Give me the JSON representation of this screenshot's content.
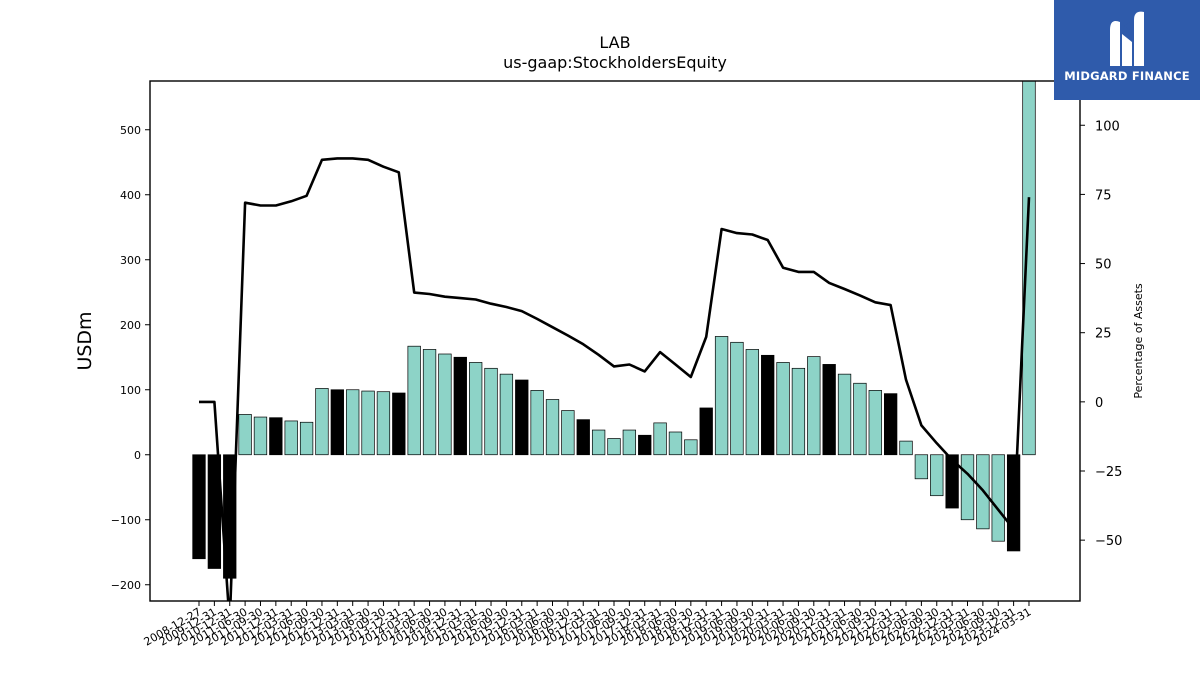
{
  "chart_data": {
    "type": "bar",
    "title": "LAB",
    "subtitle": "us-gaap:StockholdersEquity",
    "ylabel": "USDm",
    "y2label": "Percentage of Assets",
    "ylim": [
      -225,
      575
    ],
    "y2lim": [
      -72,
      116
    ],
    "yticks": [
      -200,
      -100,
      0,
      100,
      200,
      300,
      400,
      500
    ],
    "y2ticks": [
      -50,
      -25,
      0,
      25,
      50,
      75,
      100
    ],
    "categories": [
      "2008-12-27",
      "2009-12-31",
      "2010-12-31",
      "2011-06-30",
      "2011-09-30",
      "2011-12-31",
      "2012-03-31",
      "2012-06-30",
      "2012-09-30",
      "2012-12-31",
      "2013-03-31",
      "2013-06-30",
      "2013-09-30",
      "2013-12-31",
      "2014-03-31",
      "2014-06-30",
      "2014-09-30",
      "2014-12-31",
      "2015-03-31",
      "2015-06-30",
      "2015-09-30",
      "2015-12-31",
      "2016-03-31",
      "2016-06-30",
      "2016-09-30",
      "2016-12-31",
      "2017-03-31",
      "2017-06-30",
      "2017-09-30",
      "2017-12-31",
      "2018-03-31",
      "2018-06-30",
      "2018-09-30",
      "2018-12-31",
      "2019-03-31",
      "2019-06-30",
      "2019-09-30",
      "2019-12-31",
      "2020-03-31",
      "2020-06-30",
      "2020-09-30",
      "2020-12-31",
      "2021-03-31",
      "2021-06-30",
      "2021-09-30",
      "2021-12-31",
      "2022-03-31",
      "2022-06-30",
      "2022-09-30",
      "2022-12-31",
      "2023-03-31",
      "2023-06-30",
      "2023-09-30",
      "2023-12-31",
      "2024-03-31"
    ],
    "xtick_labels": [
      "2008-12-27",
      "2009-12-31",
      "2010-12-31",
      "2011-06-30",
      "2011-09-30",
      "2011-12-31",
      "2012-03-31",
      "2012-06-30",
      "2012-09-30",
      "2012-12-31",
      "2013-03-31",
      "2013-06-30",
      "2013-09-30",
      "2013-12-31",
      "2014-03-31",
      "2014-06-30",
      "2014-09-30",
      "2014-12-31",
      "2015-03-31",
      "2015-06-30",
      "2015-09-30",
      "2015-12-31",
      "2016-03-31",
      "2016-06-30",
      "2016-09-30",
      "2016-12-31",
      "2017-03-31",
      "2017-06-30",
      "2017-09-30",
      "2017-12-31",
      "2018-03-31",
      "2018-06-30",
      "2018-09-30",
      "2018-12-31",
      "2019-03-31",
      "2019-06-30",
      "2019-09-30",
      "2019-12-31",
      "2020-03-31",
      "2020-06-30",
      "2020-09-30",
      "2020-12-31",
      "2021-03-31",
      "2021-06-30",
      "2021-09-30",
      "2021-12-31",
      "2022-03-31",
      "2022-06-30",
      "2022-09-30",
      "2022-12-31",
      "2023-03-31",
      "2023-06-30",
      "2023-09-30",
      "2023-12-31",
      "2024-03-31"
    ],
    "series": [
      {
        "type": "bar",
        "axis": "left",
        "values": [
          -160,
          -175,
          -190,
          62,
          58,
          57,
          52,
          50,
          102,
          100,
          100,
          98,
          97,
          95,
          167,
          162,
          155,
          150,
          142,
          133,
          124,
          115,
          99,
          85,
          68,
          54,
          38,
          25,
          38,
          30,
          49,
          35,
          23,
          72,
          182,
          173,
          162,
          153,
          142,
          133,
          151,
          139,
          124,
          110,
          99,
          94,
          21,
          -37,
          -63,
          -82,
          -100,
          -114,
          -133,
          -148,
          578
        ],
        "colors": [
          "#000000",
          "#000000",
          "#000000",
          "#8dd3c7",
          "#8dd3c7",
          "#000000",
          "#8dd3c7",
          "#8dd3c7",
          "#8dd3c7",
          "#000000",
          "#8dd3c7",
          "#8dd3c7",
          "#8dd3c7",
          "#000000",
          "#8dd3c7",
          "#8dd3c7",
          "#8dd3c7",
          "#000000",
          "#8dd3c7",
          "#8dd3c7",
          "#8dd3c7",
          "#000000",
          "#8dd3c7",
          "#8dd3c7",
          "#8dd3c7",
          "#000000",
          "#8dd3c7",
          "#8dd3c7",
          "#8dd3c7",
          "#000000",
          "#8dd3c7",
          "#8dd3c7",
          "#8dd3c7",
          "#000000",
          "#8dd3c7",
          "#8dd3c7",
          "#8dd3c7",
          "#000000",
          "#8dd3c7",
          "#8dd3c7",
          "#8dd3c7",
          "#000000",
          "#8dd3c7",
          "#8dd3c7",
          "#8dd3c7",
          "#000000",
          "#8dd3c7",
          "#8dd3c7",
          "#8dd3c7",
          "#000000",
          "#8dd3c7",
          "#8dd3c7",
          "#8dd3c7",
          "#000000",
          "#8dd3c7"
        ]
      },
      {
        "type": "line",
        "axis": "right",
        "color": "#000000",
        "values": [
          0,
          0,
          -80,
          72,
          71,
          71,
          72.5,
          74.5,
          87.5,
          88,
          88,
          87.5,
          85,
          83,
          39.5,
          39,
          38,
          37.5,
          37,
          35.5,
          34.3,
          32.8,
          30,
          27,
          24,
          20.8,
          17,
          12.8,
          13.5,
          11,
          18,
          13.5,
          9,
          23.5,
          62.5,
          61,
          60.5,
          58.5,
          48.5,
          47,
          47,
          43,
          40.8,
          38.5,
          36,
          35,
          8,
          -8.5,
          -15,
          -21,
          -26,
          -32,
          -39,
          -46,
          74
        ]
      }
    ],
    "grid": false,
    "legend": "none"
  },
  "logo": {
    "text": "MIDGARD FINANCE"
  }
}
